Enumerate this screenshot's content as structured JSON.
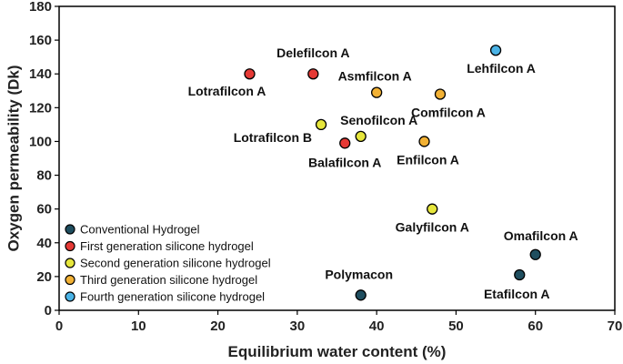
{
  "chart_data": {
    "type": "scatter",
    "xlabel": "Equilibrium water content (%)",
    "ylabel": "Oxygen permeability (Dk)",
    "xlim": [
      0,
      70
    ],
    "ylim": [
      0,
      180
    ],
    "xticks": [
      0,
      10,
      20,
      30,
      40,
      50,
      60,
      70
    ],
    "yticks": [
      0,
      20,
      40,
      60,
      80,
      100,
      120,
      140,
      160,
      180
    ],
    "legend_position": "bottom-left",
    "series": [
      {
        "name": "Conventional Hydrogel",
        "color": "#1f4e5f",
        "points": [
          {
            "label": "Polymacon",
            "x": 38,
            "y": 9
          },
          {
            "label": "Etafilcon A",
            "x": 58,
            "y": 21
          },
          {
            "label": "Omafilcon A",
            "x": 60,
            "y": 33
          }
        ]
      },
      {
        "name": "First generation silicone hydrogel",
        "color": "#e53935",
        "points": [
          {
            "label": "Lotrafilcon A",
            "x": 24,
            "y": 140
          },
          {
            "label": "Delefilcon A",
            "x": 32,
            "y": 140
          },
          {
            "label": "Balafilcon A",
            "x": 36,
            "y": 99
          }
        ]
      },
      {
        "name": "Second generation silicone hydrogel",
        "color": "#e6e63c",
        "points": [
          {
            "label": "Lotrafilcon B",
            "x": 33,
            "y": 110
          },
          {
            "label": "Senofilcon A",
            "x": 38,
            "y": 103
          },
          {
            "label": "Galyfilcon A",
            "x": 47,
            "y": 60
          }
        ]
      },
      {
        "name": "Third generation silicone hydrogel",
        "color": "#f2b134",
        "points": [
          {
            "label": "Asmfilcon A",
            "x": 40,
            "y": 129
          },
          {
            "label": "Comfilcon A",
            "x": 48,
            "y": 128
          },
          {
            "label": "Enfilcon A",
            "x": 46,
            "y": 100
          }
        ]
      },
      {
        "name": "Fourth generation silicone hydrogel",
        "color": "#4ab3e6",
        "points": [
          {
            "label": "Lehfilcon A",
            "x": 55,
            "y": 154
          }
        ]
      }
    ]
  }
}
